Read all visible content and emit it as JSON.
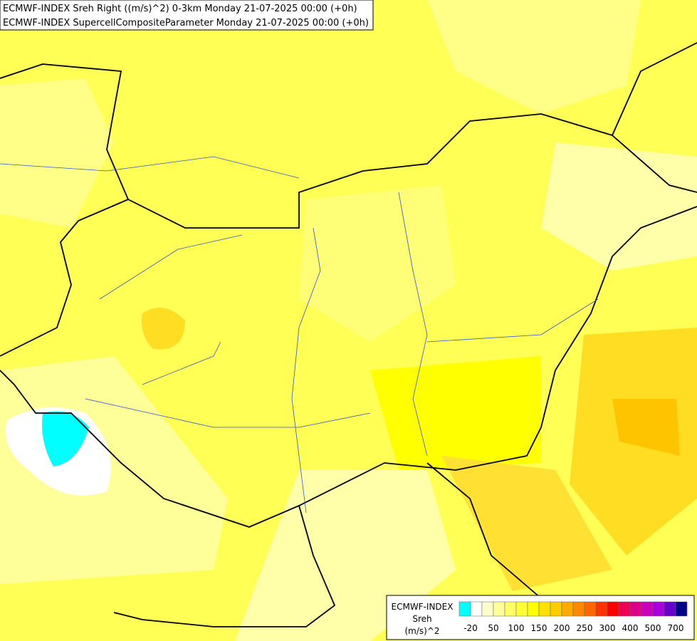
{
  "header": {
    "lines": [
      "ECMWF-INDEX Sreh Right ((m/s)^2) 0-3km Monday 21-07-2025 00:00 (+0h)",
      "ECMWF-INDEX SupercellCompositeParameter Monday 21-07-2025 00:00 (+0h)"
    ]
  },
  "legend": {
    "title": "ECMWF-INDEX",
    "variable": "Sreh",
    "unit": "(m/s)^2",
    "ticks": [
      -20,
      50,
      100,
      150,
      200,
      250,
      300,
      400,
      500,
      700
    ]
  }
}
